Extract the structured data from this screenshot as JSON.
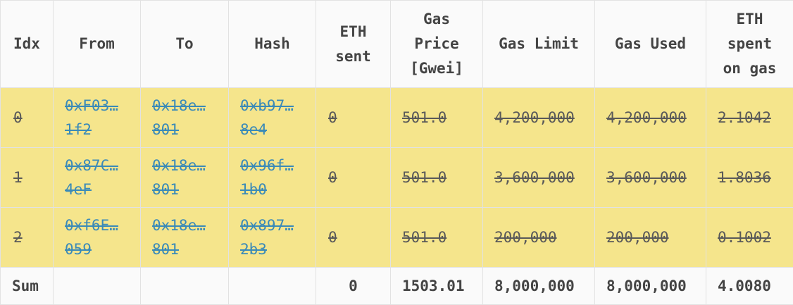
{
  "headers": {
    "idx": "Idx",
    "from": "From",
    "to": "To",
    "hash": "Hash",
    "eth_sent": "ETH\nsent",
    "gas_price": "Gas\nPrice\n[Gwei]",
    "gas_limit": "Gas Limit",
    "gas_used": "Gas Used",
    "eth_spent": "ETH\nspent\non gas"
  },
  "rows": [
    {
      "idx": "0",
      "from": [
        "0xF03…",
        "1f2"
      ],
      "to": [
        "0x18e…",
        "801"
      ],
      "hash": [
        "0xb97…",
        "8e4"
      ],
      "eth_sent": "0",
      "gas_price": "501.0",
      "gas_limit": "4,200,000",
      "gas_used": "4,200,000",
      "eth_spent": "2.1042"
    },
    {
      "idx": "1",
      "from": [
        "0x87C…",
        "4eF"
      ],
      "to": [
        "0x18e…",
        "801"
      ],
      "hash": [
        "0x96f…",
        "1b0"
      ],
      "eth_sent": "0",
      "gas_price": "501.0",
      "gas_limit": "3,600,000",
      "gas_used": "3,600,000",
      "eth_spent": "1.8036"
    },
    {
      "idx": "2",
      "from": [
        "0xf6E…",
        "059"
      ],
      "to": [
        "0x18e…",
        "801"
      ],
      "hash": [
        "0x897…",
        "2b3"
      ],
      "eth_sent": "0",
      "gas_price": "501.0",
      "gas_limit": "200,000",
      "gas_used": "200,000",
      "eth_spent": "0.1002"
    }
  ],
  "sum": {
    "label": "Sum",
    "eth_sent": "0",
    "gas_price": "1503.01",
    "gas_limit": "8,000,000",
    "gas_used": "8,000,000",
    "eth_spent": "4.0080"
  },
  "colors": {
    "row_highlight": "#f5e58c",
    "link": "#3a8ab8",
    "header_bg": "#fafafa"
  }
}
